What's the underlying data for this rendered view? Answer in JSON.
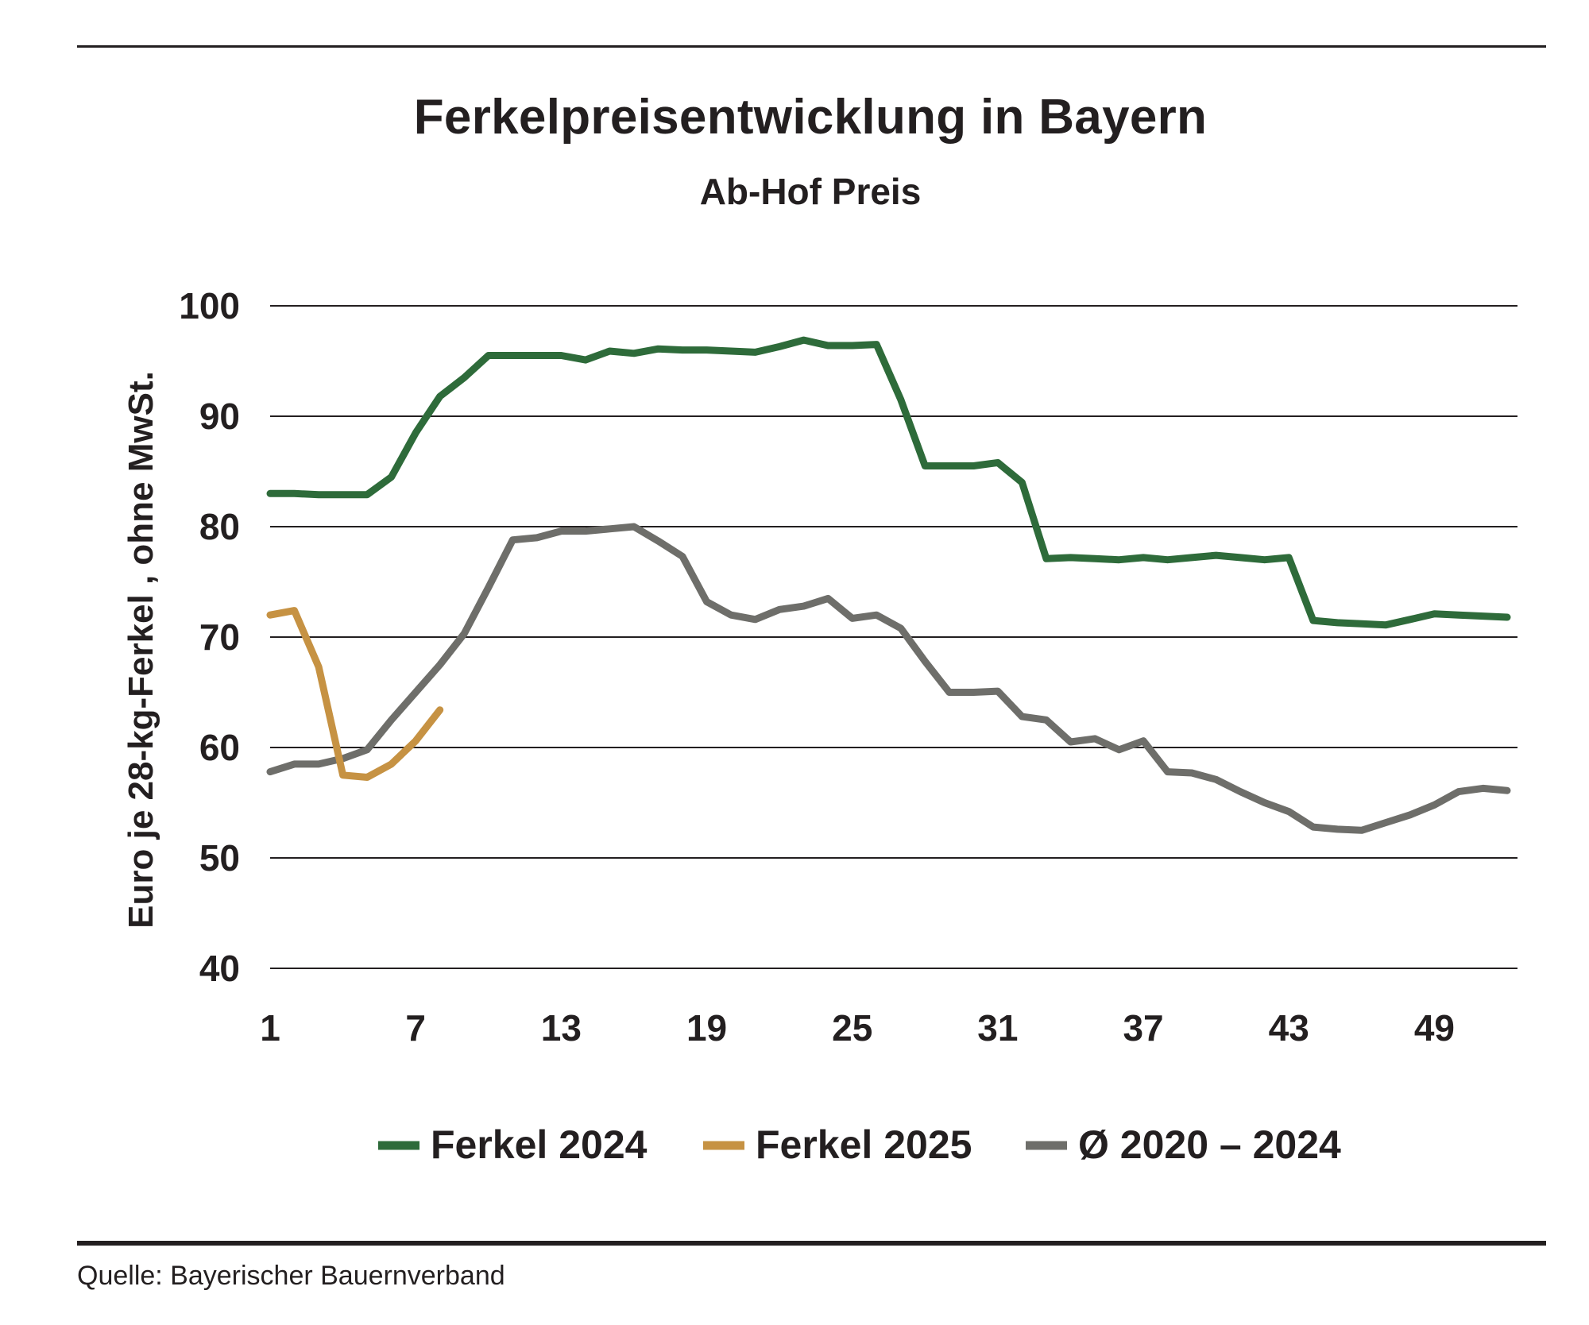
{
  "chart_data": {
    "type": "line",
    "title": "Ferkelpreisentwicklung in Bayern",
    "subtitle": "Ab-Hof Preis",
    "ylabel": "Euro je 28-kg-Ferkel , ohne MwSt.",
    "xlabel": "",
    "xlim": [
      1,
      52
    ],
    "ylim": [
      40,
      100
    ],
    "x_ticks": [
      1,
      7,
      13,
      19,
      25,
      31,
      37,
      43,
      49
    ],
    "y_ticks": [
      40,
      50,
      60,
      70,
      80,
      90,
      100
    ],
    "grid": "horizontal",
    "legend_position": "bottom",
    "series": [
      {
        "name": "Ferkel 2024",
        "color": "#2e6b3a",
        "x": [
          1,
          2,
          3,
          4,
          5,
          6,
          7,
          8,
          9,
          10,
          11,
          12,
          13,
          14,
          15,
          16,
          17,
          18,
          19,
          20,
          21,
          22,
          23,
          24,
          25,
          26,
          27,
          28,
          29,
          30,
          31,
          32,
          33,
          34,
          35,
          36,
          37,
          38,
          39,
          40,
          41,
          42,
          43,
          44,
          45,
          46,
          47,
          48,
          49,
          50,
          51,
          52
        ],
        "values": [
          83.0,
          83.0,
          82.9,
          82.9,
          82.9,
          84.5,
          88.5,
          91.8,
          93.5,
          95.5,
          95.5,
          95.5,
          95.5,
          95.1,
          95.9,
          95.7,
          96.1,
          96.0,
          96.0,
          95.9,
          95.8,
          96.3,
          96.9,
          96.4,
          96.4,
          96.5,
          91.5,
          85.5,
          85.5,
          85.5,
          85.8,
          84.0,
          77.1,
          77.2,
          77.1,
          77.0,
          77.2,
          77.0,
          77.2,
          77.4,
          77.2,
          77.0,
          77.2,
          71.5,
          71.3,
          71.2,
          71.1,
          71.6,
          72.1,
          72.0,
          71.9,
          71.8
        ]
      },
      {
        "name": "Ferkel 2025",
        "color": "#c69243",
        "x": [
          1,
          2,
          3,
          4,
          5,
          6,
          7,
          8
        ],
        "values": [
          72.0,
          72.4,
          67.3,
          57.5,
          57.3,
          58.5,
          60.6,
          63.4
        ]
      },
      {
        "name": "Ø 2020 – 2024",
        "color": "#6e6e6a",
        "x": [
          1,
          2,
          3,
          4,
          5,
          6,
          7,
          8,
          9,
          10,
          11,
          12,
          13,
          14,
          15,
          16,
          17,
          18,
          19,
          20,
          21,
          22,
          23,
          24,
          25,
          26,
          27,
          28,
          29,
          30,
          31,
          32,
          33,
          34,
          35,
          36,
          37,
          38,
          39,
          40,
          41,
          42,
          43,
          44,
          45,
          46,
          47,
          48,
          49,
          50,
          51,
          52
        ],
        "values": [
          57.8,
          58.5,
          58.5,
          59.0,
          59.8,
          62.5,
          65.0,
          67.5,
          70.3,
          74.5,
          78.8,
          79.0,
          79.6,
          79.6,
          79.8,
          80.0,
          78.7,
          77.3,
          73.2,
          72.0,
          71.6,
          72.5,
          72.8,
          73.5,
          71.7,
          72.0,
          70.8,
          67.8,
          65.0,
          65.0,
          65.1,
          62.8,
          62.5,
          60.5,
          60.8,
          59.8,
          60.6,
          57.8,
          57.7,
          57.1,
          56.0,
          55.0,
          54.2,
          52.8,
          52.6,
          52.5,
          53.2,
          53.9,
          54.8,
          56.0,
          56.3,
          56.1
        ]
      }
    ]
  },
  "source": "Quelle: Bayerischer Bauernverband"
}
